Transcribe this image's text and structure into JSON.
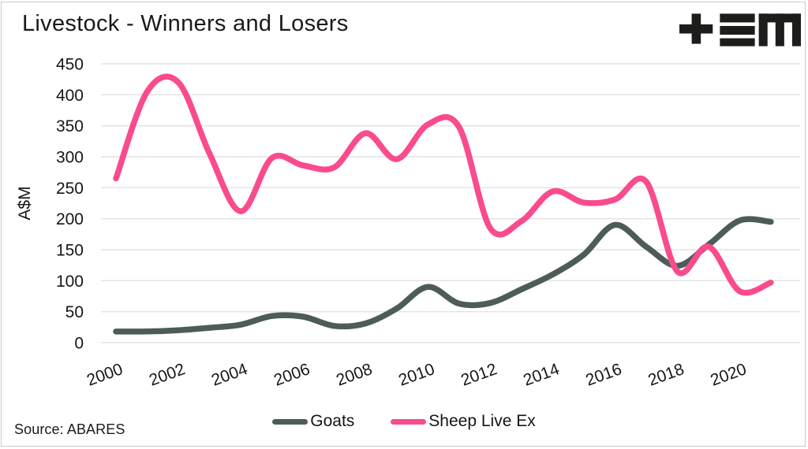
{
  "title": "Livestock - Winners and Losers",
  "source": "Source: ABARES",
  "logo": {
    "name": "tem-logo",
    "color": "#1d1d1b",
    "glyphs": [
      "plus",
      "triple-bar",
      "m"
    ]
  },
  "legend": {
    "items": [
      {
        "label": "Goats",
        "color": "#4d5c59"
      },
      {
        "label": "Sheep Live Ex",
        "color": "#f94b8e"
      }
    ]
  },
  "axes": {
    "y_label": "A$M",
    "y_ticks": [
      "0",
      "50",
      "100",
      "150",
      "200",
      "250",
      "300",
      "350",
      "400",
      "450"
    ],
    "x_ticks": [
      "2000",
      "2002",
      "2004",
      "2006",
      "2008",
      "2010",
      "2012",
      "2014",
      "2016",
      "2018",
      "2020"
    ]
  },
  "chart_data": {
    "type": "line",
    "title": "Livestock - Winners and Losers",
    "xlabel": "",
    "ylabel": "A$M",
    "ylim": [
      0,
      450
    ],
    "yticks": [
      0,
      50,
      100,
      150,
      200,
      250,
      300,
      350,
      400,
      450
    ],
    "xticks": [
      2000,
      2002,
      2004,
      2006,
      2008,
      2010,
      2012,
      2014,
      2016,
      2018,
      2020
    ],
    "grid": "horizontal-only",
    "legend_position": "bottom-center",
    "source": "Source: ABARES",
    "x": [
      2000,
      2001,
      2002,
      2003,
      2004,
      2005,
      2006,
      2007,
      2008,
      2009,
      2010,
      2011,
      2012,
      2013,
      2014,
      2015,
      2016,
      2017,
      2018,
      2019,
      2020,
      2021
    ],
    "series": [
      {
        "name": "Goats",
        "color": "#4d5c59",
        "values": [
          18,
          18,
          20,
          24,
          29,
          43,
          42,
          27,
          31,
          55,
          90,
          63,
          64,
          86,
          110,
          142,
          190,
          155,
          124,
          158,
          197,
          195
        ]
      },
      {
        "name": "Sheep Live Ex",
        "color": "#f94b8e",
        "values": [
          265,
          405,
          420,
          305,
          212,
          298,
          286,
          283,
          338,
          296,
          352,
          348,
          185,
          196,
          244,
          226,
          231,
          260,
          115,
          155,
          83,
          97
        ]
      }
    ]
  },
  "style": {
    "grid_color": "#e3e3e3",
    "tick_color": "#161616",
    "line_width": 7.5
  }
}
